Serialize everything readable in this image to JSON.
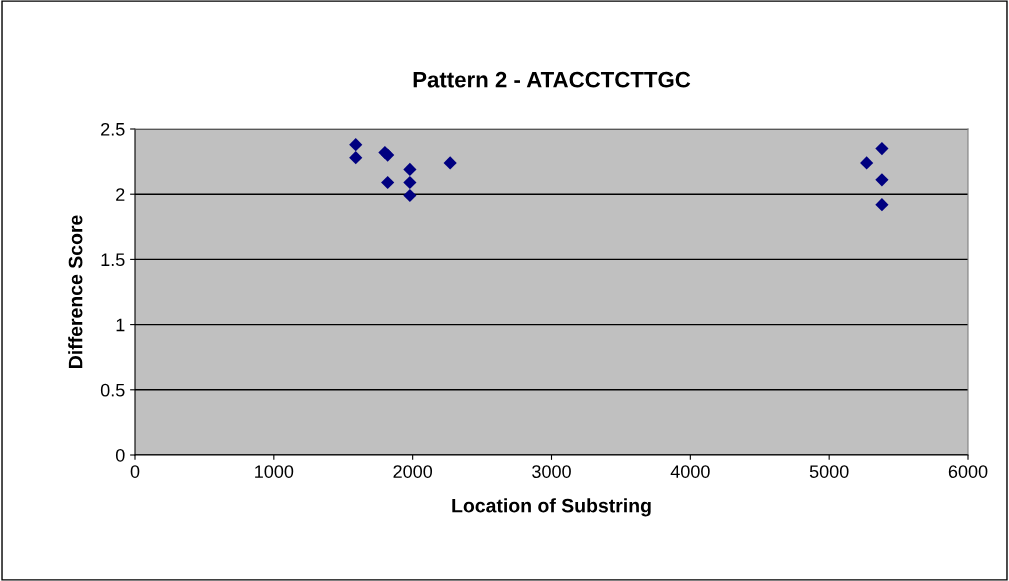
{
  "chart_data": {
    "type": "scatter",
    "title": "Pattern 2 - ATACCTCTTGC",
    "xlabel": "Location of Substring",
    "ylabel": "Difference Score",
    "x": [
      1590,
      1590,
      1800,
      1820,
      1820,
      1980,
      1980,
      1980,
      2270,
      5270,
      5380,
      5380,
      5380
    ],
    "series": [
      {
        "color": "#000080",
        "values": [
          2.38,
          2.28,
          2.32,
          2.3,
          2.09,
          2.19,
          2.09,
          1.99,
          2.24,
          2.24,
          2.35,
          2.11,
          1.92
        ]
      }
    ],
    "xlim": [
      0,
      6000
    ],
    "xticks": [
      0,
      1000,
      2000,
      3000,
      4000,
      5000,
      6000
    ],
    "ylim": [
      0,
      2.5
    ],
    "yticks": [
      0,
      0.5,
      1,
      1.5,
      2,
      2.5
    ],
    "grid": "y",
    "marker": "diamond"
  }
}
